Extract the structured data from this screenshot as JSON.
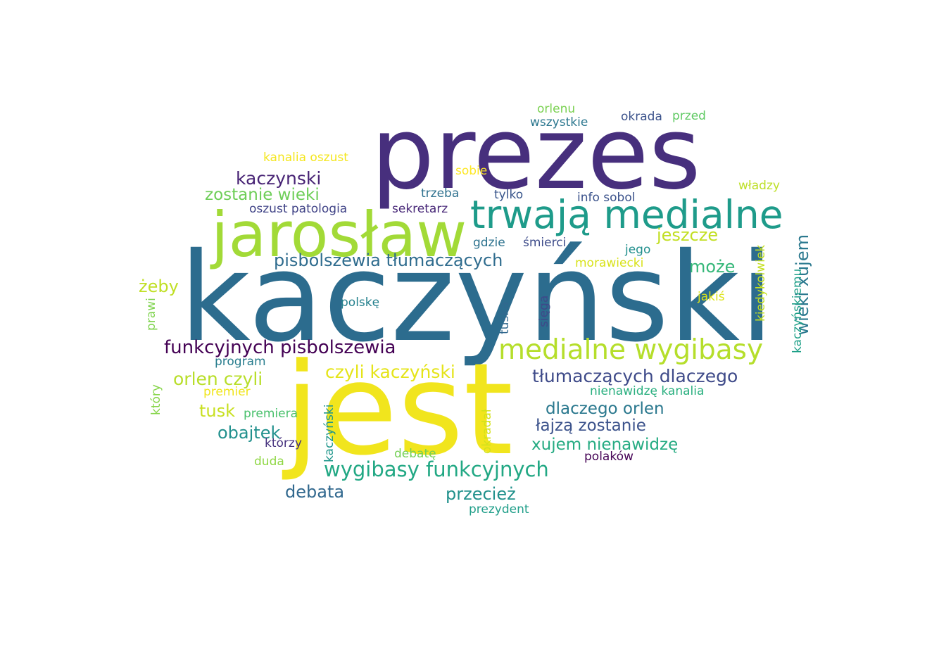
{
  "words": [
    {
      "text": "kaczyński",
      "color": "#2c6c8e"
    },
    {
      "text": "jest",
      "color": "#f1e51d"
    },
    {
      "text": "prezes",
      "color": "#472f7d"
    },
    {
      "text": "jarosław",
      "color": "#a2da37"
    },
    {
      "text": "trwają medialne",
      "color": "#1e9b8a"
    },
    {
      "text": "medialne wygibasy",
      "color": "#b5de2b"
    },
    {
      "text": "funkcyjnych pisbolszewia",
      "color": "#440154"
    },
    {
      "text": "pisbolszewia tłumaczących",
      "color": "#2f6c8e"
    },
    {
      "text": "wygibasy funkcyjnych",
      "color": "#22a884"
    },
    {
      "text": "tłumaczących dlaczego",
      "color": "#3e4a89"
    },
    {
      "text": "czyli kaczyński",
      "color": "#e5e419"
    },
    {
      "text": "dlaczego orlen",
      "color": "#2a788e"
    },
    {
      "text": "łajzą zostanie",
      "color": "#3b528b"
    },
    {
      "text": "xujem nienawidzę",
      "color": "#25ab82"
    },
    {
      "text": "orlen czyli",
      "color": "#b8de29"
    },
    {
      "text": "zostanie wieki",
      "color": "#6ece58"
    },
    {
      "text": "kaczynski",
      "color": "#482475"
    },
    {
      "text": "wieki xujem",
      "color": "#2a788e"
    },
    {
      "text": "jeszcze",
      "color": "#c2df23"
    },
    {
      "text": "może",
      "color": "#35b779"
    },
    {
      "text": "obajtek",
      "color": "#21908d"
    },
    {
      "text": "debata",
      "color": "#31688e"
    },
    {
      "text": "przecież",
      "color": "#21918c"
    },
    {
      "text": "tusk",
      "color": "#c8e020"
    },
    {
      "text": "żeby",
      "color": "#c0df25"
    },
    {
      "text": "kanalia oszust",
      "color": "#f4e61e"
    },
    {
      "text": "oszust patologia",
      "color": "#414487"
    },
    {
      "text": "sekretarz",
      "color": "#482878"
    },
    {
      "text": "trzeba",
      "color": "#2d708e"
    },
    {
      "text": "tylko",
      "color": "#39568c"
    },
    {
      "text": "info sobol",
      "color": "#3b528b"
    },
    {
      "text": "gdzie",
      "color": "#2c728e"
    },
    {
      "text": "śmierci",
      "color": "#3e4c8a"
    },
    {
      "text": "jego",
      "color": "#218f8d"
    },
    {
      "text": "morawiecki",
      "color": "#d8e219"
    },
    {
      "text": "polskę",
      "color": "#26818e"
    },
    {
      "text": "jakiś",
      "color": "#dde318"
    },
    {
      "text": "orlenu",
      "color": "#7ad151"
    },
    {
      "text": "wszystkie",
      "color": "#2a768e"
    },
    {
      "text": "okrada",
      "color": "#3b528b"
    },
    {
      "text": "przed",
      "color": "#5ec962"
    },
    {
      "text": "sobie",
      "color": "#fde725"
    },
    {
      "text": "władzy",
      "color": "#bddf26"
    },
    {
      "text": "program",
      "color": "#287d8e"
    },
    {
      "text": "premier",
      "color": "#f0e51c"
    },
    {
      "text": "premiera",
      "color": "#4ac16d"
    },
    {
      "text": "którzy",
      "color": "#46327e"
    },
    {
      "text": "duda",
      "color": "#8fd744"
    },
    {
      "text": "debatę",
      "color": "#74d055"
    },
    {
      "text": "nienawidzę kanalia",
      "color": "#29af7f"
    },
    {
      "text": "polaków",
      "color": "#440154"
    },
    {
      "text": "prezydent",
      "color": "#1f9e89"
    },
    {
      "text": "prawi",
      "color": "#7fd34e"
    },
    {
      "text": "który",
      "color": "#86d549"
    },
    {
      "text": "kaczyński",
      "color": "#1f968b"
    },
    {
      "text": "okradał",
      "color": "#d2e21b"
    },
    {
      "text": "tuska",
      "color": "#31688e"
    },
    {
      "text": "sięga",
      "color": "#3e4989"
    },
    {
      "text": "kiedykolwiek",
      "color": "#c5e021"
    },
    {
      "text": "kaczyńskiemu",
      "color": "#1fa088"
    }
  ]
}
